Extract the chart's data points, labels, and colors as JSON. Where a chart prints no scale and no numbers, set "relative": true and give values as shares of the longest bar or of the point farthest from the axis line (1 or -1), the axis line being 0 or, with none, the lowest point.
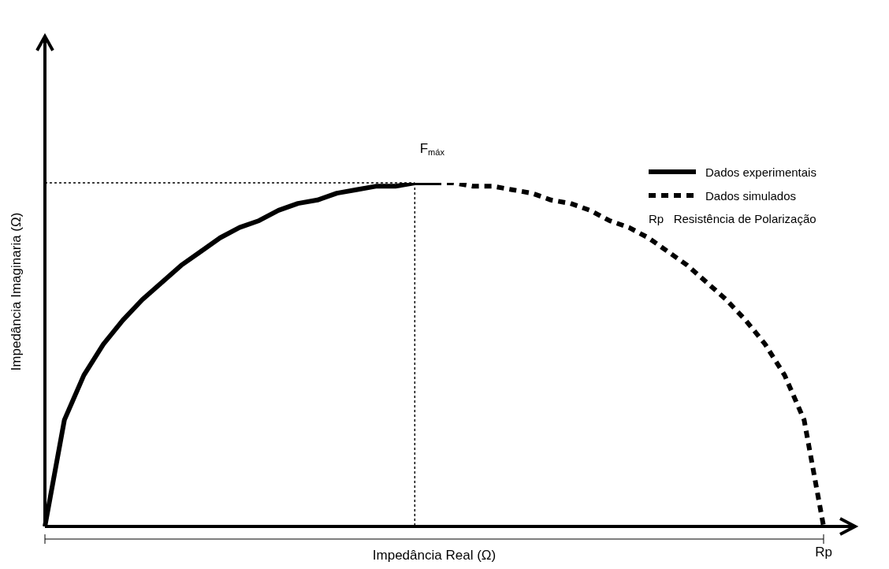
{
  "chart_data": {
    "type": "line",
    "relative": true,
    "xlabel": "Impedância Real (Ω)",
    "ylabel": "Impedância Imaginaria (Ω)",
    "legend": "top right",
    "categories": [
      null,
      null,
      null,
      null,
      null,
      null,
      null,
      null,
      null,
      null,
      null,
      null,
      null,
      null,
      null,
      null,
      null,
      null,
      null,
      null,
      null,
      null,
      null,
      null,
      null,
      null,
      null,
      null,
      null,
      null,
      null,
      null,
      null,
      null,
      null,
      null,
      null,
      null,
      null,
      null,
      null
    ],
    "series": [
      {
        "name": "Dados experimentais",
        "color": "#000000",
        "line_style": "solid",
        "values": [
          0,
          0.31,
          0.44,
          0.53,
          0.6,
          0.66,
          0.71,
          0.76,
          0.8,
          0.84,
          0.87,
          0.89,
          0.92,
          0.94,
          0.95,
          0.97,
          0.98,
          0.99,
          0.99,
          1,
          1,
          null,
          null,
          null,
          null,
          null,
          null,
          null,
          null,
          null,
          null,
          null,
          null,
          null,
          null,
          null,
          null,
          null,
          null,
          null,
          null
        ]
      },
      {
        "name": "Dados simulados",
        "color": "#000000",
        "line_style": "dashed",
        "values": [
          null,
          null,
          null,
          null,
          null,
          null,
          null,
          null,
          null,
          null,
          null,
          null,
          null,
          null,
          null,
          null,
          null,
          null,
          null,
          null,
          1,
          1,
          0.99,
          0.99,
          0.98,
          0.97,
          0.95,
          0.94,
          0.92,
          0.89,
          0.87,
          0.84,
          0.8,
          0.76,
          0.71,
          0.66,
          0.6,
          0.53,
          0.44,
          0.31,
          0
        ]
      }
    ],
    "ref_lines": [
      {
        "axis": "y",
        "value": 1,
        "color": "#000000",
        "line_style": "dotted"
      }
    ],
    "annotations": [
      "F$_{máx}$",
      "Rp",
      "Rp   Resistência de Polarização"
    ]
  }
}
